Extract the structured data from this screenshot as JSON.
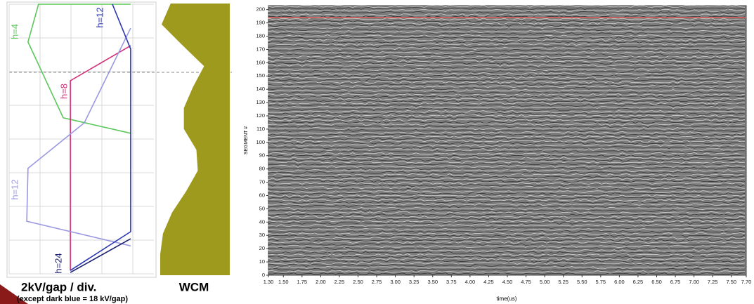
{
  "chart_data": [
    {
      "type": "line",
      "annotations": [
        "2kV/gap / div.",
        "(except dark blue = 18 kV/gap)"
      ],
      "xlim": [
        0,
        4
      ],
      "ylim": [
        0,
        8
      ],
      "xticks": [
        0,
        1,
        2,
        3,
        4
      ],
      "yticks": [
        0,
        1,
        2,
        3,
        4,
        5,
        6,
        7,
        8
      ],
      "grid": true,
      "series": [
        {
          "name": "h=4",
          "color": "#5cc85c",
          "x": [
            3.93,
            0.95,
            0.61,
            1.75,
            3.93
          ],
          "values": [
            8.0,
            8.0,
            6.88,
            4.63,
            4.17
          ]
        },
        {
          "name": "h=8",
          "color": "#d0307a",
          "x": [
            3.93,
            1.98,
            1.98
          ],
          "values": [
            6.77,
            5.73,
            0.1
          ]
        },
        {
          "name": "h=12",
          "color": "#9a98e0",
          "x": [
            3.93,
            2.43,
            0.61,
            0.57,
            3.93
          ],
          "values": [
            7.29,
            4.48,
            3.13,
            1.56,
            0.83
          ]
        },
        {
          "name": "h=12",
          "color": "#2a36b0",
          "x": [
            3.34,
            3.93,
            3.93,
            1.98
          ],
          "values": [
            8.0,
            6.67,
            1.25,
            0.1
          ]
        },
        {
          "name": "h=24",
          "color": "#1c2270",
          "x": [
            1.98,
            3.93
          ],
          "values": [
            0.04,
            1.04
          ]
        }
      ]
    },
    {
      "type": "area",
      "title": "WCM",
      "color": "#9e9a1e",
      "xlim": [
        0,
        1
      ],
      "values": [
        0.85,
        0.98,
        0.68,
        0.37,
        0.53,
        0.66,
        0.66,
        0.48,
        0.46,
        0.63,
        0.83,
        0.96,
        1.0,
        1.0
      ]
    },
    {
      "type": "mountain-range",
      "xlabel": "time(us)",
      "ylabel": "SEGMENT #",
      "xlim": [
        1.3,
        7.7
      ],
      "ylim": [
        0,
        203
      ],
      "highlight_segment": 194,
      "highlight_color": "#e05a5a",
      "xticks": [
        {
          "value": 1.3,
          "label": "1.30"
        },
        {
          "value": 1.5,
          "label": "1.50"
        },
        1.75,
        {
          "value": 2.0,
          "label": "2.00"
        },
        2.25,
        {
          "value": 2.5,
          "label": "2.50"
        },
        2.75,
        {
          "value": 3.0,
          "label": "3.00"
        },
        3.25,
        {
          "value": 3.5,
          "label": "3.50"
        },
        3.75,
        {
          "value": 4.0,
          "label": "4.00"
        },
        4.25,
        {
          "value": 4.5,
          "label": "4.50"
        },
        4.75,
        {
          "value": 5.0,
          "label": "5.00"
        },
        5.25,
        {
          "value": 5.5,
          "label": "5.50"
        },
        5.75,
        {
          "value": 6.0,
          "label": "6.00"
        },
        6.25,
        {
          "value": 6.5,
          "label": "6.50"
        },
        6.75,
        {
          "value": 7.0,
          "label": "7.00"
        },
        7.25,
        {
          "value": 7.5,
          "label": "7.50"
        },
        {
          "value": 7.7,
          "label": "7.70"
        }
      ],
      "yticks": [
        0,
        10,
        20,
        30,
        40,
        50,
        60,
        70,
        80,
        90,
        100,
        110,
        120,
        130,
        140,
        150,
        160,
        170,
        180,
        190,
        200
      ]
    }
  ]
}
